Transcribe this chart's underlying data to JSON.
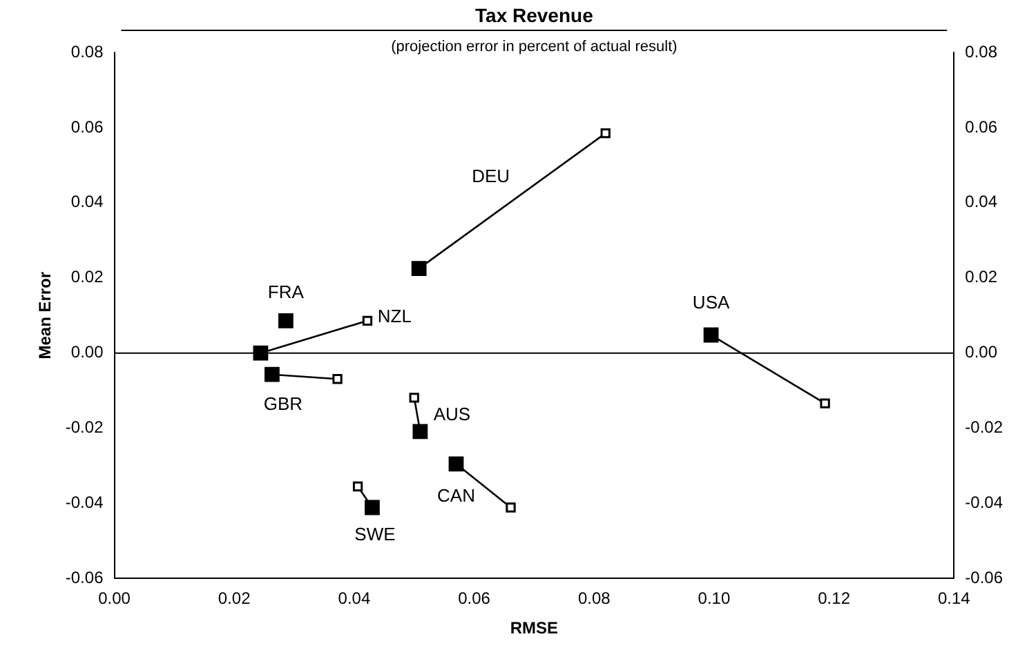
{
  "chart_data": {
    "type": "line",
    "title": "Tax Revenue",
    "subtitle": "(projection error in percent of actual result)",
    "xlabel": "RMSE",
    "ylabel": "Mean Error",
    "marker": "square",
    "grid": false,
    "legend": false,
    "xlim": [
      0,
      0.14
    ],
    "xticks": [
      {
        "value": 0,
        "label": "0.00"
      },
      {
        "value": 0.02,
        "label": "0.02"
      },
      {
        "value": 0.04,
        "label": "0.04"
      },
      {
        "value": 0.06,
        "label": "0.06"
      },
      {
        "value": 0.08,
        "label": "0.08"
      },
      {
        "value": 0.1,
        "label": "0.10"
      },
      {
        "value": 0.12,
        "label": "0.12"
      },
      {
        "value": 0.14,
        "label": "0.14"
      }
    ],
    "ylim": [
      -0.06,
      0.08
    ],
    "yticks": [
      {
        "value": -0.06,
        "label": "-0.06"
      },
      {
        "value": -0.04,
        "label": "-0.04"
      },
      {
        "value": -0.02,
        "label": "-0.02"
      },
      {
        "value": 0,
        "label": "0.00"
      },
      {
        "value": 0.02,
        "label": "0.02"
      },
      {
        "value": 0.04,
        "label": "0.04"
      },
      {
        "value": 0.06,
        "label": "0.06"
      },
      {
        "value": 0.08,
        "label": "0.08"
      }
    ],
    "y2lim": [
      -0.06,
      0.08
    ],
    "y2ticks": [
      {
        "value": -0.06,
        "label": "-0.06"
      },
      {
        "value": -0.04,
        "label": "-0.04"
      },
      {
        "value": -0.02,
        "label": "-0.02"
      },
      {
        "value": 0,
        "label": "0.00"
      },
      {
        "value": 0.02,
        "label": "0.02"
      },
      {
        "value": 0.04,
        "label": "0.04"
      },
      {
        "value": 0.06,
        "label": "0.06"
      },
      {
        "value": 0.08,
        "label": "0.08"
      }
    ],
    "ref_lines": [
      {
        "axis": "y",
        "value": 0,
        "color": "#000000"
      }
    ],
    "series": [
      {
        "name": "FRA",
        "color": "#000000",
        "x": [
          0.0286
        ],
        "values": [
          0.0086
        ]
      },
      {
        "name": "NZL",
        "color": "#000000",
        "x": [
          0.0244,
          0.0422
        ],
        "values": [
          0.0,
          0.0086
        ]
      },
      {
        "name": "GBR",
        "color": "#000000",
        "x": [
          0.0263,
          0.0372
        ],
        "values": [
          -0.0057,
          -0.0069
        ]
      },
      {
        "name": "DEU",
        "color": "#000000",
        "x": [
          0.0508,
          0.0819
        ],
        "values": [
          0.0225,
          0.0585
        ]
      },
      {
        "name": "AUS",
        "color": "#000000",
        "x": [
          0.051,
          0.05
        ],
        "values": [
          -0.0209,
          -0.0119
        ]
      },
      {
        "name": "CAN",
        "color": "#000000",
        "x": [
          0.057,
          0.0661
        ],
        "values": [
          -0.0295,
          -0.0411
        ]
      },
      {
        "name": "SWE",
        "color": "#000000",
        "x": [
          0.043,
          0.0406
        ],
        "values": [
          -0.0411,
          -0.0355
        ]
      },
      {
        "name": "USA",
        "color": "#000000",
        "x": [
          0.0995,
          0.1185
        ],
        "values": [
          0.0048,
          -0.0134
        ]
      }
    ]
  }
}
